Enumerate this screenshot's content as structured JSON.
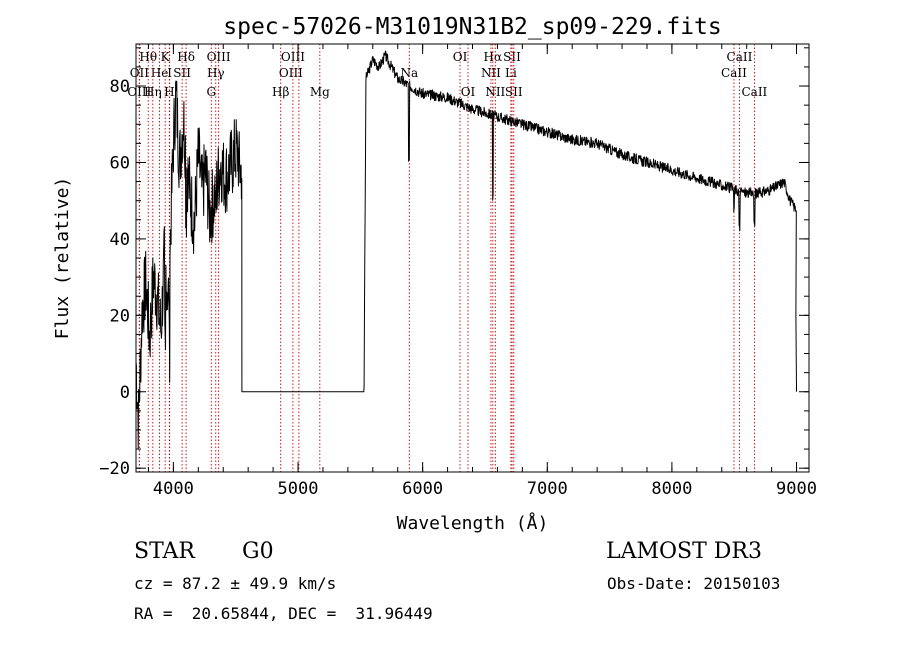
{
  "chart_data": {
    "type": "line",
    "title": "spec-57026-M31019N31B2_sp09-229.fits",
    "xlabel": "Wavelength (Å)",
    "ylabel": "Flux (relative)",
    "xlim": [
      3700,
      9100
    ],
    "ylim": [
      -21,
      91
    ],
    "x_ticks": [
      4000,
      5000,
      6000,
      7000,
      8000,
      9000
    ],
    "x_tick_labels": [
      "4000",
      "5000",
      "6000",
      "7000",
      "8000",
      "9000"
    ],
    "y_ticks": [
      -20,
      0,
      20,
      40,
      60,
      80
    ],
    "y_tick_labels": [
      "−20",
      "0",
      "20",
      "40",
      "60",
      "80"
    ],
    "x_minor_step": 200,
    "y_minor_step": 5,
    "series": [
      {
        "name": "flux",
        "segments": [
          {
            "x0": 3700,
            "x1": 4550,
            "anchors": [
              [
                3700,
                8
              ],
              [
                3720,
                -8
              ],
              [
                3750,
                22
              ],
              [
                3780,
                28
              ],
              [
                3810,
                14
              ],
              [
                3840,
                30
              ],
              [
                3870,
                25
              ],
              [
                3900,
                16
              ],
              [
                3930,
                36
              ],
              [
                3960,
                24
              ],
              [
                3990,
                55
              ],
              [
                4000,
                65
              ],
              [
                4020,
                78
              ],
              [
                4050,
                60
              ],
              [
                4080,
                72
              ],
              [
                4110,
                58
              ],
              [
                4140,
                50
              ],
              [
                4170,
                44
              ],
              [
                4200,
                62
              ],
              [
                4230,
                52
              ],
              [
                4260,
                58
              ],
              [
                4290,
                46
              ],
              [
                4320,
                50
              ],
              [
                4350,
                54
              ],
              [
                4380,
                60
              ],
              [
                4410,
                56
              ],
              [
                4440,
                57
              ],
              [
                4470,
                60
              ],
              [
                4500,
                63
              ],
              [
                4520,
                62
              ],
              [
                4530,
                58
              ]
            ],
            "noise": 10,
            "seed": 7
          },
          {
            "x0": 4550,
            "x1": 5530,
            "anchors": [
              [
                4550,
                0
              ],
              [
                5530,
                0
              ]
            ],
            "noise": 0,
            "seed": 1
          },
          {
            "x0": 5530,
            "x1": 9000,
            "anchors": [
              [
                5530,
                2
              ],
              [
                5545,
                82
              ],
              [
                5600,
                87
              ],
              [
                5650,
                85
              ],
              [
                5700,
                88
              ],
              [
                5800,
                82
              ],
              [
                5900,
                80
              ],
              [
                6000,
                78
              ],
              [
                6200,
                77
              ],
              [
                6400,
                74
              ],
              [
                6600,
                72
              ],
              [
                6800,
                70
              ],
              [
                7000,
                68
              ],
              [
                7200,
                66
              ],
              [
                7400,
                65
              ],
              [
                7600,
                62
              ],
              [
                7800,
                60
              ],
              [
                8000,
                58
              ],
              [
                8200,
                56
              ],
              [
                8400,
                54
              ],
              [
                8500,
                53
              ],
              [
                8600,
                52
              ],
              [
                8700,
                52
              ],
              [
                8800,
                53
              ],
              [
                8900,
                55
              ],
              [
                8950,
                50
              ],
              [
                8990,
                48
              ]
            ],
            "noise": 1.4,
            "seed": 3
          }
        ],
        "dips": [
          [
            5890,
            20
          ],
          [
            6563,
            14
          ],
          [
            6563,
            8
          ],
          [
            8498,
            6
          ],
          [
            8542,
            10
          ],
          [
            8662,
            8
          ],
          [
            3934,
            25
          ],
          [
            3968,
            22
          ],
          [
            4102,
            12
          ],
          [
            4340,
            8
          ]
        ],
        "end_drop": [
          [
            8995,
            20
          ],
          [
            9000,
            0
          ]
        ]
      }
    ],
    "line_ids": [
      {
        "label": "Hθ",
        "x": 3798,
        "row": 1,
        "offset": 0
      },
      {
        "label": "OII",
        "x": 3727,
        "row": 2,
        "offset": 0
      },
      {
        "label": "OIII",
        "x": 3727,
        "row": 3,
        "offset": 0
      },
      {
        "label": "He",
        "x": 3889,
        "row": 2,
        "offset": 0
      },
      {
        "label": "Hη",
        "x": 3835,
        "row": 3,
        "offset": 0
      },
      {
        "label": "K",
        "x": 3934,
        "row": 1,
        "offset": 0
      },
      {
        "label": "H",
        "x": 3968,
        "row": 3,
        "offset": 0
      },
      {
        "label": "I",
        "x": 3970,
        "row": 2,
        "offset": 0
      },
      {
        "label": "Hδ",
        "x": 4102,
        "row": 1,
        "offset": 0
      },
      {
        "label": "SII",
        "x": 4070,
        "row": 2,
        "offset": 0
      },
      {
        "label": "OIII",
        "x": 4363,
        "row": 1,
        "offset": 0
      },
      {
        "label": "Hγ",
        "x": 4340,
        "row": 2,
        "offset": 0
      },
      {
        "label": "G",
        "x": 4304,
        "row": 3,
        "offset": 0
      },
      {
        "label": "OIII",
        "x": 4959,
        "row": 1,
        "offset": 0
      },
      {
        "label": "OIII",
        "x": 5007,
        "row": 2,
        "offset": -8
      },
      {
        "label": "Hβ",
        "x": 4861,
        "row": 3,
        "offset": 0
      },
      {
        "label": "Mg",
        "x": 5175,
        "row": 3,
        "offset": 0
      },
      {
        "label": "Na",
        "x": 5893,
        "row": 2,
        "offset": 0
      },
      {
        "label": "OI",
        "x": 6300,
        "row": 1,
        "offset": 0
      },
      {
        "label": "OI",
        "x": 6364,
        "row": 3,
        "offset": 0
      },
      {
        "label": "Hα",
        "x": 6563,
        "row": 1,
        "offset": 0
      },
      {
        "label": "NII",
        "x": 6548,
        "row": 2,
        "offset": 0
      },
      {
        "label": "NII",
        "x": 6583,
        "row": 3,
        "offset": 0
      },
      {
        "label": "SII",
        "x": 6717,
        "row": 1,
        "offset": 0
      },
      {
        "label": "Li",
        "x": 6708,
        "row": 2,
        "offset": 0
      },
      {
        "label": "SII",
        "x": 6731,
        "row": 3,
        "offset": 0
      },
      {
        "label": "CaII",
        "x": 8542,
        "row": 1,
        "offset": 0
      },
      {
        "label": "CaII",
        "x": 8498,
        "row": 2,
        "offset": 0
      },
      {
        "label": "CaII",
        "x": 8662,
        "row": 3,
        "offset": 0
      }
    ]
  },
  "info": {
    "class": "STAR",
    "subclass": "G0",
    "survey": "LAMOST DR3",
    "redshift": "cz = 87.2 ± 49.9 km/s",
    "obs_date": "Obs-Date: 20150103",
    "coords": "RA =  20.65844, DEC =  31.96449"
  }
}
